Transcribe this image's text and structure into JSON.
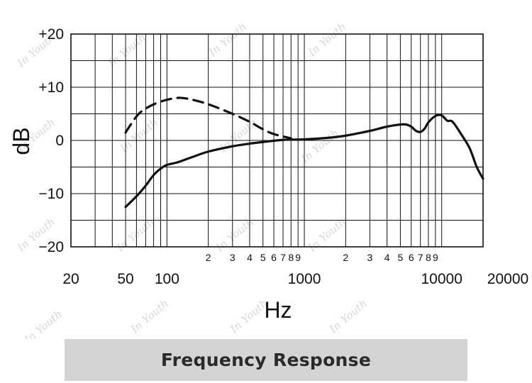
{
  "chart_data": {
    "type": "line",
    "x_scale": "log",
    "xlim": [
      20,
      20000
    ],
    "ylim": [
      -20,
      20
    ],
    "grid": true,
    "xlabel": "Hz",
    "ylabel": "dB",
    "y_ticks": [
      {
        "value": 20,
        "label": "+20"
      },
      {
        "value": 10,
        "label": "+10"
      },
      {
        "value": 0,
        "label": "0"
      },
      {
        "value": -10,
        "label": "−10"
      },
      {
        "value": -20,
        "label": "−20"
      }
    ],
    "y_grid_step": 5,
    "x_major_ticks": [
      {
        "value": 20,
        "label": "20"
      },
      {
        "value": 50,
        "label": "50"
      },
      {
        "value": 100,
        "label": "100"
      },
      {
        "value": 1000,
        "label": "1000"
      },
      {
        "value": 10000,
        "label": "10000"
      },
      {
        "value": 20000,
        "label": "20000"
      }
    ],
    "x_minor_ticks": [
      {
        "value": 200,
        "label": "2"
      },
      {
        "value": 300,
        "label": "3"
      },
      {
        "value": 400,
        "label": "4"
      },
      {
        "value": 500,
        "label": "5"
      },
      {
        "value": 600,
        "label": "6"
      },
      {
        "value": 700,
        "label": "7"
      },
      {
        "value": 800,
        "label": "8"
      },
      {
        "value": 900,
        "label": "9"
      },
      {
        "value": 2000,
        "label": "2"
      },
      {
        "value": 3000,
        "label": "3"
      },
      {
        "value": 4000,
        "label": "4"
      },
      {
        "value": 5000,
        "label": "5"
      },
      {
        "value": 6000,
        "label": "6"
      },
      {
        "value": 7000,
        "label": "7"
      },
      {
        "value": 8000,
        "label": "8"
      },
      {
        "value": 9000,
        "label": "9"
      }
    ],
    "x_grid_lines": [
      30,
      40,
      50,
      60,
      70,
      80,
      90,
      100,
      200,
      300,
      400,
      500,
      600,
      700,
      800,
      900,
      1000,
      2000,
      3000,
      4000,
      5000,
      6000,
      7000,
      8000,
      9000,
      10000,
      20000
    ],
    "series": [
      {
        "style": "solid",
        "points": [
          [
            50,
            -12.5
          ],
          [
            60,
            -10.5
          ],
          [
            70,
            -8.5
          ],
          [
            80,
            -6.5
          ],
          [
            90,
            -5.3
          ],
          [
            100,
            -4.6
          ],
          [
            120,
            -4.1
          ],
          [
            150,
            -3.2
          ],
          [
            200,
            -2.1
          ],
          [
            300,
            -1.1
          ],
          [
            400,
            -0.6
          ],
          [
            500,
            -0.3
          ],
          [
            700,
            0.1
          ],
          [
            1000,
            0.2
          ],
          [
            1500,
            0.5
          ],
          [
            2000,
            0.9
          ],
          [
            3000,
            1.8
          ],
          [
            4000,
            2.6
          ],
          [
            5000,
            3.0
          ],
          [
            5500,
            3.0
          ],
          [
            6000,
            2.6
          ],
          [
            6500,
            1.8
          ],
          [
            7000,
            1.6
          ],
          [
            7500,
            2.2
          ],
          [
            8000,
            3.4
          ],
          [
            9000,
            4.6
          ],
          [
            10000,
            4.7
          ],
          [
            11000,
            3.7
          ],
          [
            12000,
            3.5
          ],
          [
            14000,
            1.0
          ],
          [
            16000,
            -1.5
          ],
          [
            18000,
            -5.0
          ],
          [
            20000,
            -7.2
          ]
        ]
      },
      {
        "style": "dashed",
        "points": [
          [
            50,
            1.5
          ],
          [
            60,
            4.5
          ],
          [
            70,
            6.0
          ],
          [
            90,
            7.3
          ],
          [
            120,
            8.0
          ],
          [
            150,
            7.7
          ],
          [
            200,
            6.8
          ],
          [
            300,
            5.0
          ],
          [
            400,
            3.5
          ],
          [
            500,
            2.1
          ],
          [
            600,
            1.2
          ],
          [
            800,
            0.4
          ]
        ]
      }
    ],
    "series_color": "#111111",
    "grid_color": "#111111"
  },
  "caption": "Frequency Response",
  "watermark": "In Youth"
}
